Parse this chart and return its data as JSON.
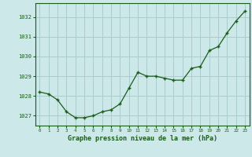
{
  "x": [
    0,
    1,
    2,
    3,
    4,
    5,
    6,
    7,
    8,
    9,
    10,
    11,
    12,
    13,
    14,
    15,
    16,
    17,
    18,
    19,
    20,
    21,
    22,
    23
  ],
  "y": [
    1028.2,
    1028.1,
    1027.8,
    1027.2,
    1026.9,
    1026.9,
    1027.0,
    1027.2,
    1027.3,
    1027.6,
    1028.4,
    1029.2,
    1029.0,
    1029.0,
    1028.9,
    1028.8,
    1028.8,
    1029.4,
    1029.5,
    1030.3,
    1030.5,
    1031.2,
    1031.8,
    1032.3
  ],
  "ylim": [
    1026.5,
    1032.7
  ],
  "yticks": [
    1027,
    1028,
    1029,
    1030,
    1031,
    1032
  ],
  "xticks": [
    0,
    1,
    2,
    3,
    4,
    5,
    6,
    7,
    8,
    9,
    10,
    11,
    12,
    13,
    14,
    15,
    16,
    17,
    18,
    19,
    20,
    21,
    22,
    23
  ],
  "line_color": "#1a5c1a",
  "marker_color": "#1a5c1a",
  "bg_color": "#cce8e8",
  "grid_color": "#aacccc",
  "xlabel": "Graphe pression niveau de la mer (hPa)",
  "tick_color": "#1a5c1a",
  "spine_color": "#1a5c1a",
  "xlabel_color": "#1a5c1a"
}
